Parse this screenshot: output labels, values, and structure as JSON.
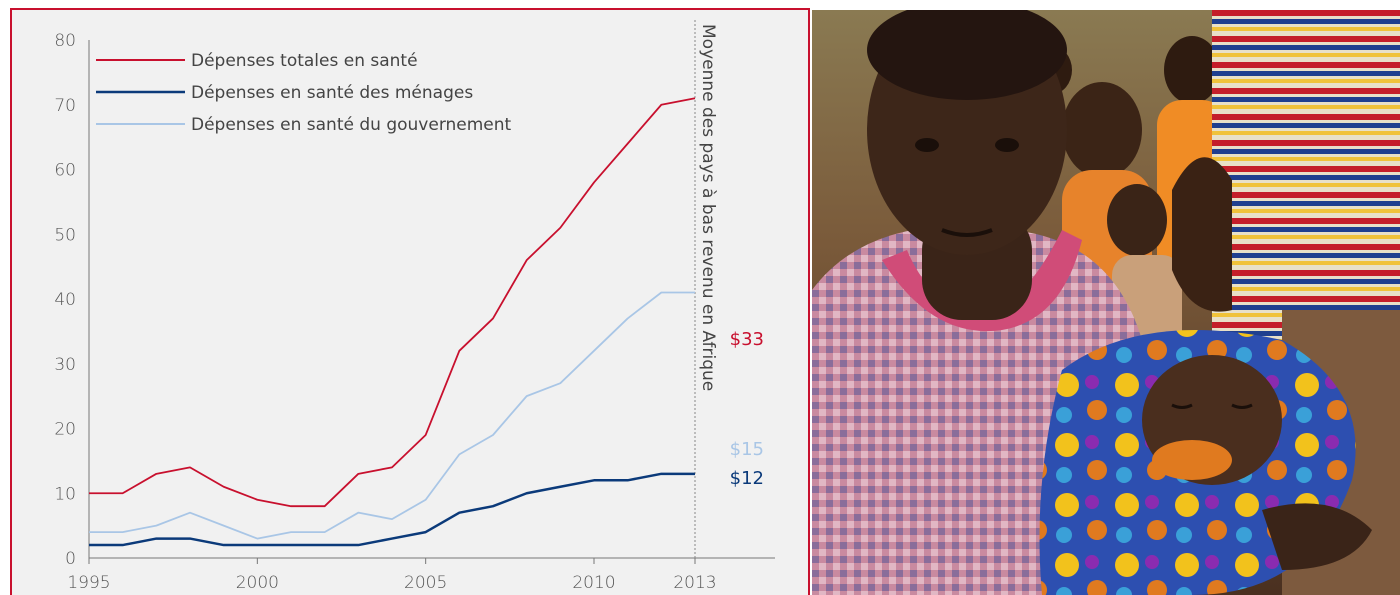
{
  "colors": {
    "total": "#c8102e",
    "menages": "#0b3a7a",
    "gouvernement": "#a9c6e6",
    "frame": "#c8102e",
    "background": "#f1f1f1"
  },
  "chart_data": {
    "type": "line",
    "x": [
      1995,
      1996,
      1997,
      1998,
      1999,
      2000,
      2001,
      2002,
      2003,
      2004,
      2005,
      2006,
      2007,
      2008,
      2009,
      2010,
      2011,
      2012,
      2013
    ],
    "x_ticks": [
      "1995",
      "2000",
      "2005",
      "2010",
      "2013"
    ],
    "y_ticks": [
      "0",
      "10",
      "20",
      "30",
      "40",
      "50",
      "60",
      "70",
      "80"
    ],
    "ylim": [
      0,
      80
    ],
    "series": [
      {
        "name": "Dépenses totales en santé",
        "key": "total",
        "values": [
          10,
          10,
          13,
          14,
          11,
          9,
          8,
          8,
          13,
          14,
          19,
          32,
          37,
          46,
          51,
          58,
          64,
          70,
          71
        ]
      },
      {
        "name": "Dépenses en santé des ménages",
        "key": "menages",
        "values": [
          2,
          2,
          3,
          3,
          2,
          2,
          2,
          2,
          2,
          3,
          4,
          7,
          8,
          10,
          11,
          12,
          12,
          13,
          13
        ]
      },
      {
        "name": "Dépenses en santé du gouvernement",
        "key": "gouvernement",
        "values": [
          4,
          4,
          5,
          7,
          5,
          3,
          4,
          4,
          7,
          6,
          9,
          16,
          19,
          25,
          27,
          32,
          37,
          41,
          41
        ]
      }
    ],
    "annotation": "Moyenne des pays à bas revenu en Afrique",
    "reference_values": [
      {
        "key": "total",
        "label": "$33",
        "value": 33
      },
      {
        "key": "gouvernement",
        "label": "$15",
        "value": 15
      },
      {
        "key": "menages",
        "label": "$12",
        "value": 12
      }
    ],
    "legend_position": "top-left",
    "grid": false
  },
  "photo": {
    "subject": "woman-holding-baby-icon"
  }
}
